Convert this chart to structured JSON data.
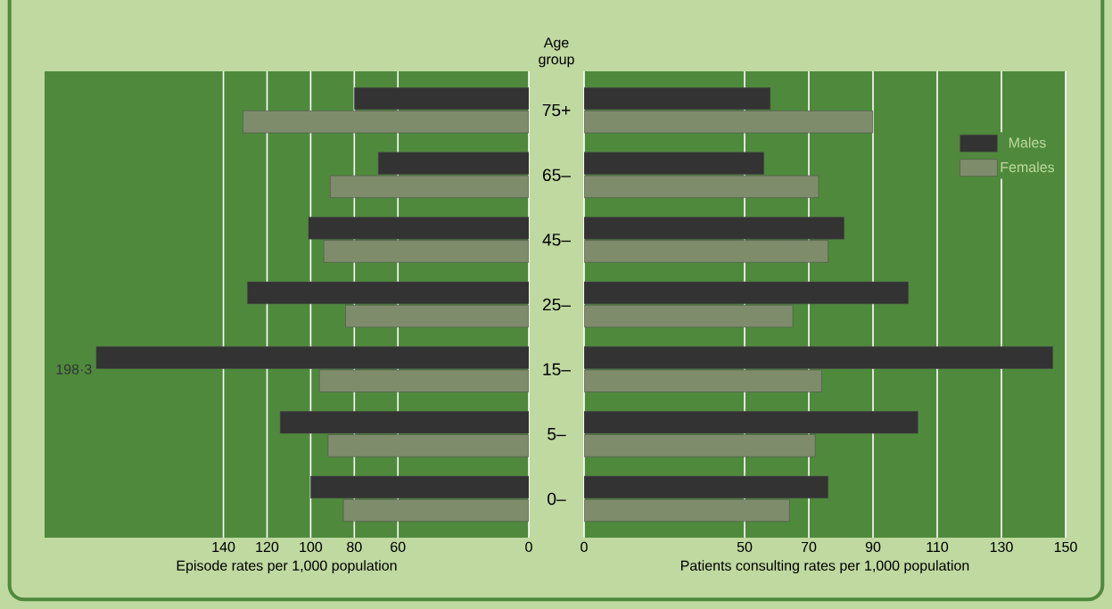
{
  "chart_data": [
    {
      "type": "bar",
      "orientation": "horizontal",
      "ylabel": "Age group",
      "xlabel": "Episode rates per 1,000 population",
      "grid": "x",
      "categories": [
        "75+",
        "65–",
        "45–",
        "25–",
        "15–",
        "5–",
        "0–"
      ],
      "series": [
        {
          "color": "#333333",
          "values": [
            80,
            69,
            101,
            129,
            198.3,
            114,
            100
          ],
          "value_labels": [
            null,
            null,
            null,
            null,
            "198·3",
            null,
            null
          ]
        },
        {
          "color": "#7f8c6c",
          "values": [
            131,
            91,
            94,
            84,
            96,
            92,
            85
          ]
        }
      ],
      "xlim": [
        222,
        0
      ],
      "xticks": [
        0,
        60,
        80,
        100,
        120,
        140
      ]
    },
    {
      "type": "bar",
      "orientation": "horizontal",
      "xlabel": "Patients consulting rates per 1,000 population",
      "grid": "x",
      "legend": "top right",
      "tick_labels": "x",
      "categories": [
        null,
        null,
        null,
        null,
        null,
        null,
        null
      ],
      "series": [
        {
          "name": "Males",
          "color": "#333333",
          "values": [
            58,
            56,
            81,
            101,
            146,
            104,
            76
          ]
        },
        {
          "name": "Females",
          "color": "#7f8c6c",
          "values": [
            90,
            73,
            76,
            65,
            74,
            72,
            64
          ]
        }
      ],
      "xlim": [
        0,
        150
      ],
      "xticks": [
        0,
        50,
        70,
        90,
        110,
        130,
        150
      ]
    }
  ]
}
